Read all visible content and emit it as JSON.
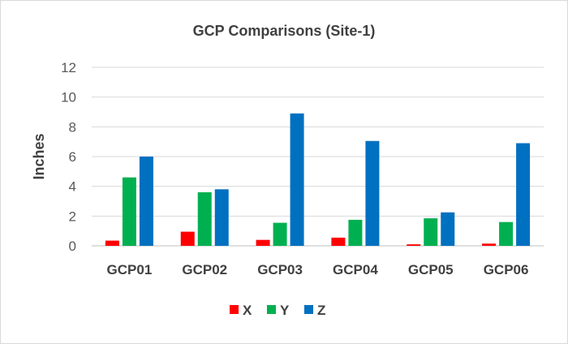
{
  "chart_data": {
    "type": "bar",
    "title": "GCP Comparisons (Site-1)",
    "xlabel": "",
    "ylabel": "Inches",
    "ylim": [
      0,
      12
    ],
    "yticks": [
      0,
      2,
      4,
      6,
      8,
      10,
      12
    ],
    "grid": true,
    "legend_position": "bottom",
    "categories": [
      "GCP01",
      "GCP02",
      "GCP03",
      "GCP04",
      "GCP05",
      "GCP06"
    ],
    "series": [
      {
        "name": "X",
        "color": "#ff0000",
        "values": [
          0.35,
          0.95,
          0.4,
          0.55,
          0.1,
          0.15
        ]
      },
      {
        "name": "Y",
        "color": "#00b050",
        "values": [
          4.6,
          3.6,
          1.55,
          1.75,
          1.85,
          1.6
        ]
      },
      {
        "name": "Z",
        "color": "#0070c0",
        "values": [
          6.0,
          3.8,
          8.9,
          7.05,
          2.25,
          6.9
        ]
      }
    ]
  }
}
